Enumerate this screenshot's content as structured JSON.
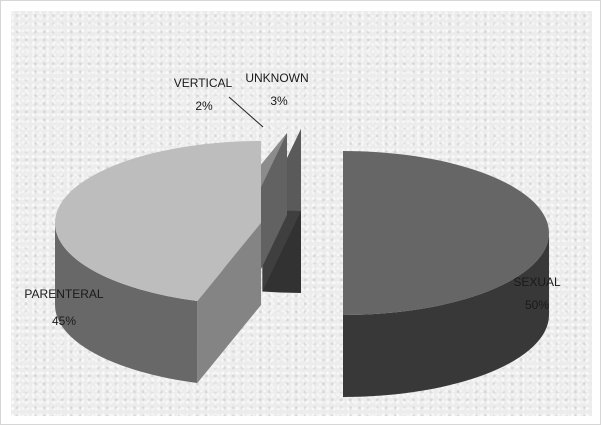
{
  "chart_data": {
    "type": "pie",
    "style": "3d-exploded",
    "categories": [
      "SEXUAL",
      "UNKNOWN",
      "VERTICAL",
      "PARENTERAL"
    ],
    "values": [
      50,
      3,
      2,
      45
    ],
    "data_labels": [
      {
        "name": "SEXUAL",
        "value": "50%"
      },
      {
        "name": "UNKNOWN",
        "value": "3%"
      },
      {
        "name": "VERTICAL",
        "value": "2%"
      },
      {
        "name": "PARENTERAL",
        "value": "45%"
      }
    ],
    "colors": {
      "SEXUAL": "#666666",
      "UNKNOWN": "#5a5a5a",
      "VERTICAL": "#8c8c8c",
      "PARENTERAL": "#bdbdbd"
    },
    "legend": "none"
  }
}
